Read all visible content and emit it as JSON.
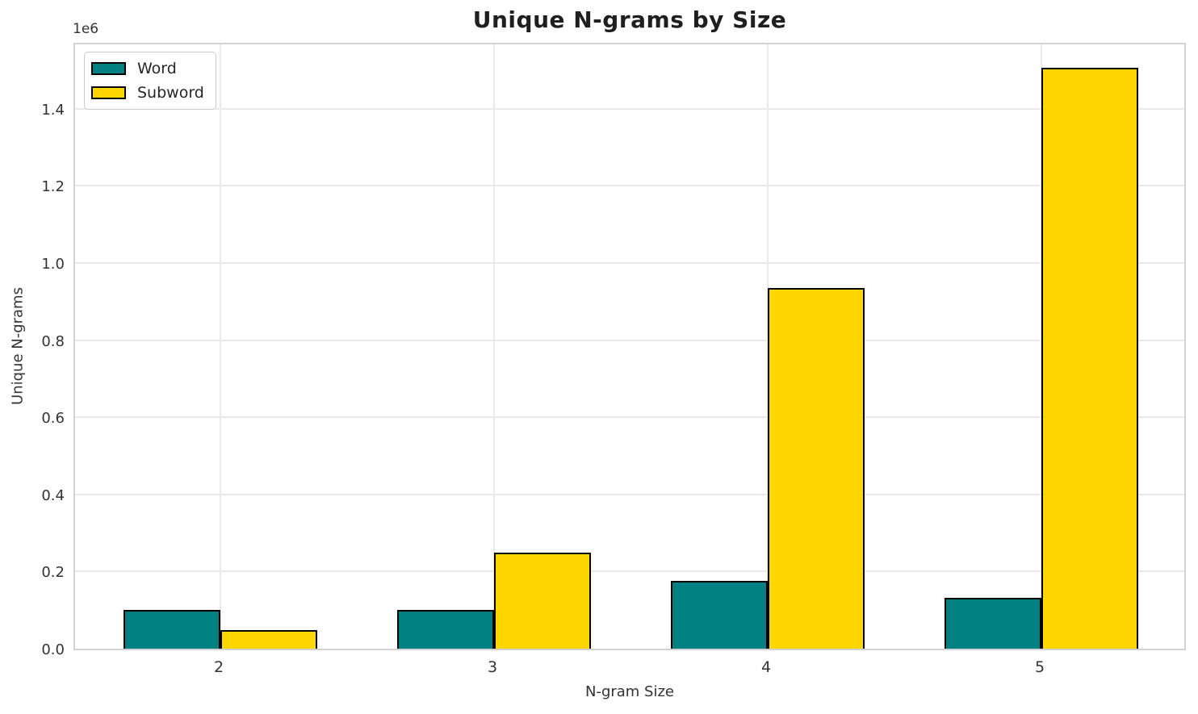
{
  "title": "Unique N-grams by Size",
  "legend": {
    "items": [
      {
        "label": "Word",
        "color": "#008080"
      },
      {
        "label": "Subword",
        "color": "#FFD700"
      }
    ]
  },
  "chart_data": {
    "type": "bar",
    "title": "Unique N-grams by Size",
    "xlabel": "N-gram Size",
    "ylabel": "Unique N-grams",
    "offset_text": "1e6",
    "categories": [
      "2",
      "3",
      "4",
      "5"
    ],
    "series": [
      {
        "name": "Word",
        "color": "#008080",
        "values": [
          100000,
          100000,
          175000,
          132000
        ]
      },
      {
        "name": "Subword",
        "color": "#FFD700",
        "values": [
          48000,
          248000,
          935000,
          1505000
        ]
      }
    ],
    "ylim": [
      0,
      1575000
    ],
    "yticks": [
      0,
      200000,
      400000,
      600000,
      800000,
      1000000,
      1200000,
      1400000
    ],
    "ytick_labels": [
      "0.0",
      "0.2",
      "0.4",
      "0.6",
      "0.8",
      "1.0",
      "1.2",
      "1.4"
    ],
    "bar_edge_color": "#000000",
    "grid": true,
    "legend_position": "upper left"
  },
  "colors": {
    "grid": "#e9e9e9",
    "spine": "#d3d3d3",
    "tick_text": "#333333",
    "title_text": "#1f1f1f"
  }
}
